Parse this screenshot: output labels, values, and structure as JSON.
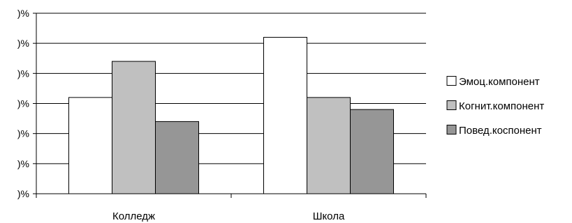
{
  "chart_data": {
    "type": "bar",
    "categories": [
      "Колледж",
      "Школа"
    ],
    "series": [
      {
        "name": "Эмоц.компонент",
        "values": [
          32,
          52
        ],
        "color": "#ffffff"
      },
      {
        "name": "Когнит.компонент",
        "values": [
          44,
          32
        ],
        "color": "#c0c0c0"
      },
      {
        "name": "Повед.коспонент",
        "values": [
          24,
          28
        ],
        "color": "#969696"
      }
    ],
    "yticks": [
      {
        "value": 0,
        "label": ")%"
      },
      {
        "value": 10,
        "label": ")%"
      },
      {
        "value": 20,
        "label": ")%"
      },
      {
        "value": 30,
        "label": ")%"
      },
      {
        "value": 40,
        "label": ")%"
      },
      {
        "value": 50,
        "label": ")%"
      },
      {
        "value": 60,
        "label": ")%"
      }
    ],
    "ylim": [
      0,
      60
    ],
    "grid": true,
    "legend_position": "right",
    "title": "",
    "xlabel": "",
    "ylabel": ""
  }
}
